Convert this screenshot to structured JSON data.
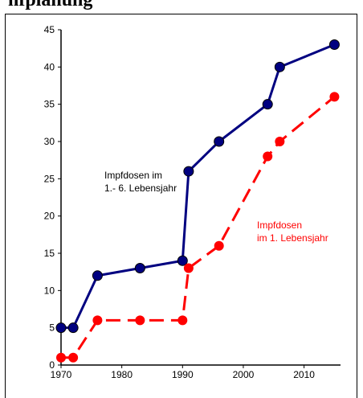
{
  "header": {
    "partial_title": "nfplanung"
  },
  "chart_data": {
    "type": "line",
    "title": "",
    "xlabel": "",
    "ylabel": "",
    "xlim": [
      1970,
      2016
    ],
    "ylim": [
      0,
      45
    ],
    "x_ticks": [
      1970,
      1980,
      1990,
      2000,
      2010
    ],
    "y_ticks": [
      0,
      5,
      10,
      15,
      20,
      25,
      30,
      35,
      40,
      45
    ],
    "grid": false,
    "legend": "none",
    "series": [
      {
        "points": [
          [
            1970,
            5
          ],
          [
            1972,
            5
          ],
          [
            1976,
            12
          ],
          [
            1983,
            13
          ],
          [
            1990,
            14
          ],
          [
            1991,
            26
          ],
          [
            1996,
            30
          ],
          [
            2004,
            35
          ],
          [
            2006,
            40
          ],
          [
            2015,
            43
          ]
        ],
        "color": "#000080",
        "style": "solid"
      },
      {
        "points": [
          [
            1970,
            1
          ],
          [
            1972,
            1
          ],
          [
            1976,
            6
          ],
          [
            1983,
            6
          ],
          [
            1990,
            6
          ],
          [
            1991,
            13
          ],
          [
            1996,
            16
          ],
          [
            2004,
            28
          ],
          [
            2006,
            30
          ],
          [
            2015,
            36
          ]
        ],
        "color": "#ff0000",
        "style": "dashed"
      }
    ],
    "annotations": [
      {
        "lines": [
          "Impfdosen im",
          "1.- 6. Lebensjahr"
        ],
        "color": "#000000"
      },
      {
        "lines": [
          "Impfdosen",
          "im 1. Lebensjahr"
        ],
        "color": "#ff0000"
      }
    ]
  }
}
